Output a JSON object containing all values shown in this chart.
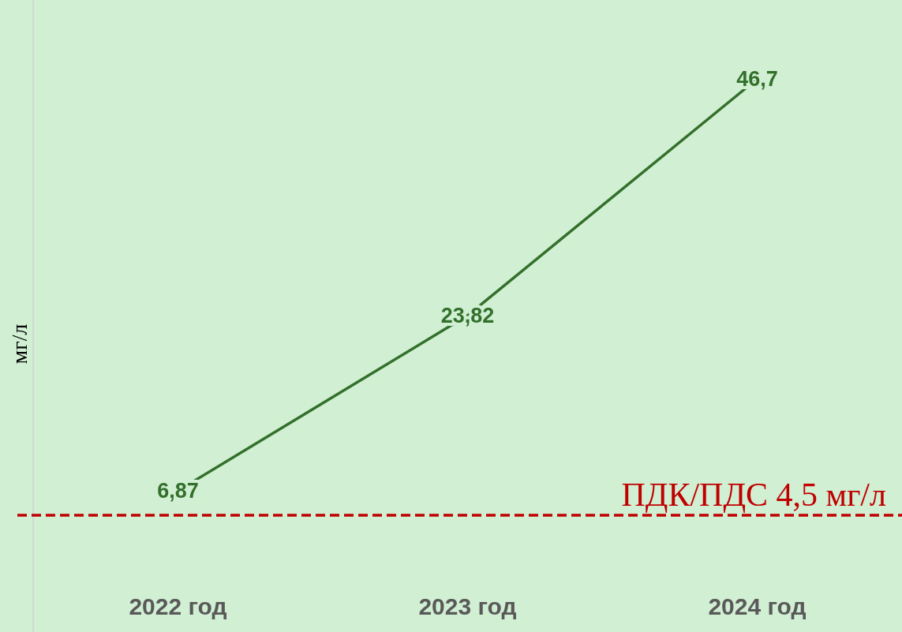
{
  "chart_data": {
    "type": "line",
    "ylabel": "мг/л",
    "categories": [
      "2022 год",
      "2023 год",
      "2024 год"
    ],
    "series": [
      {
        "color": "#33702b",
        "values": [
          6.87,
          23.82,
          46.7
        ],
        "value_labels": [
          "6,87",
          "23,82",
          "46,7"
        ]
      }
    ],
    "ref_lines": [
      {
        "axis": "y",
        "value": 4.5,
        "label": "ПДК/ПДС 4,5 мг/л",
        "color": "#c00000",
        "line_style": "dashed"
      }
    ],
    "marker": "none",
    "line_style": "solid"
  }
}
